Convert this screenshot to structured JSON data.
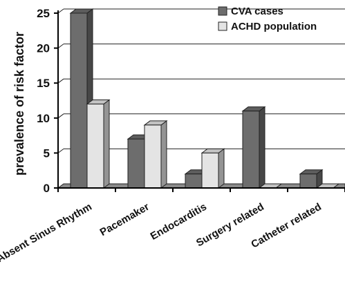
{
  "chart_data": {
    "type": "bar",
    "categories": [
      "Absent Sinus Rhythm",
      "Pacemaker",
      "Endocarditis",
      "Surgery related",
      "Catheter related"
    ],
    "series": [
      {
        "name": "CVA cases",
        "values": [
          25,
          7,
          2,
          11,
          2
        ],
        "color": "#6d6d6d"
      },
      {
        "name": "ACHD population",
        "values": [
          12,
          9,
          5,
          0,
          0
        ],
        "color": "#e4e4e4"
      }
    ],
    "xlabel": "",
    "ylabel": "prevalence of risk factor",
    "ylim": [
      0,
      25
    ],
    "yticks": [
      0,
      5,
      10,
      15,
      20,
      25
    ],
    "grid": true,
    "legend_position": "top-right",
    "style": "3d-bar"
  }
}
